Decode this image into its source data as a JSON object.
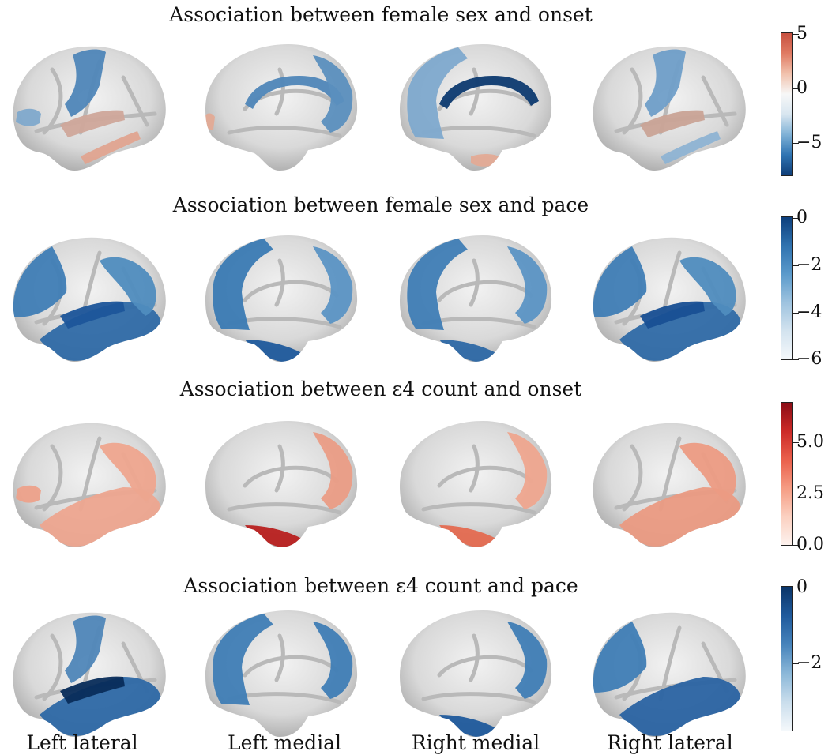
{
  "rows": [
    {
      "title": "Association between female sex and onset",
      "colorbar": {
        "gradient": [
          "#0f3e78",
          "#2f74b2",
          "#7fb1d6",
          "#d8e6f0",
          "#f7f7f7",
          "#f1c2ad",
          "#e07b63",
          "#c6503f"
        ],
        "ticks": [
          "5",
          "0",
          "−5"
        ]
      },
      "brains": [
        {
          "view": "Left lateral",
          "patches": [
            {
              "color": "#4f86b8",
              "shape": "precentral"
            },
            {
              "color": "#7fa9cc",
              "shape": "frontal-spot"
            },
            {
              "color": "#cfa79a",
              "shape": "insula"
            },
            {
              "color": "#e0a490",
              "shape": "temporal-stripe"
            }
          ]
        },
        {
          "view": "Left medial",
          "patches": [
            {
              "color": "#4f86b8",
              "shape": "cingulate"
            },
            {
              "color": "#5b8fbe",
              "shape": "precuneus"
            },
            {
              "color": "#e3aa95",
              "shape": "pole"
            }
          ]
        },
        {
          "view": "Right medial",
          "patches": [
            {
              "color": "#0d3a70",
              "shape": "cingulate"
            },
            {
              "color": "#7ea9cd",
              "shape": "frontal-medial"
            },
            {
              "color": "#e3aa95",
              "shape": "parahippo"
            }
          ]
        },
        {
          "view": "Right lateral",
          "patches": [
            {
              "color": "#6f9ec8",
              "shape": "precentral"
            },
            {
              "color": "#c9a396",
              "shape": "insula"
            },
            {
              "color": "#8eb3d3",
              "shape": "temporal-stripe"
            }
          ]
        }
      ]
    },
    {
      "title": "Association between female sex and pace",
      "colorbar": {
        "gradient": [
          "#f4f8fb",
          "#d3e3ef",
          "#9ec3df",
          "#5b9acb",
          "#2f72af",
          "#0d3f7c"
        ],
        "ticks": [
          "0",
          "−2",
          "−4",
          "−6"
        ]
      },
      "brains": [
        {
          "view": "Left lateral",
          "patches": [
            {
              "color": "#3f7db5",
              "shape": "frontal-big"
            },
            {
              "color": "#2f6aa6",
              "shape": "temporal-big"
            },
            {
              "color": "#1c559a",
              "shape": "insula"
            },
            {
              "color": "#4f8cbe",
              "shape": "parietal"
            }
          ]
        },
        {
          "view": "Left medial",
          "patches": [
            {
              "color": "#3a7ab3",
              "shape": "frontal-medial"
            },
            {
              "color": "#5b94c4",
              "shape": "precuneus"
            },
            {
              "color": "#1f5a9c",
              "shape": "basal"
            }
          ]
        },
        {
          "view": "Right medial",
          "patches": [
            {
              "color": "#3f7db5",
              "shape": "frontal-medial"
            },
            {
              "color": "#5b94c4",
              "shape": "precuneus"
            },
            {
              "color": "#2d68a5",
              "shape": "basal"
            }
          ]
        },
        {
          "view": "Right lateral",
          "patches": [
            {
              "color": "#2f6aa6",
              "shape": "temporal-big"
            },
            {
              "color": "#3f7db5",
              "shape": "frontal-big"
            },
            {
              "color": "#184f93",
              "shape": "insula"
            },
            {
              "color": "#4f8cbe",
              "shape": "parietal"
            }
          ]
        }
      ]
    },
    {
      "title": "Association between ε4 count and onset",
      "colorbar": {
        "gradient": [
          "#fdf2ee",
          "#fbd0c0",
          "#f59c83",
          "#ea5f4b",
          "#cc2a27",
          "#8b0d16"
        ],
        "ticks": [
          "5.0",
          "2.5",
          "0.0"
        ]
      },
      "brains": [
        {
          "view": "Left lateral",
          "patches": [
            {
              "color": "#eda18a",
              "shape": "frontal-spot"
            },
            {
              "color": "#eea58e",
              "shape": "parietal"
            },
            {
              "color": "#eda58f",
              "shape": "temporal-big"
            }
          ]
        },
        {
          "view": "Left medial",
          "patches": [
            {
              "color": "#ea9c85",
              "shape": "precuneus"
            },
            {
              "color": "#b8201f",
              "shape": "basal"
            }
          ]
        },
        {
          "view": "Right medial",
          "patches": [
            {
              "color": "#eea58e",
              "shape": "precuneus"
            },
            {
              "color": "#e46a50",
              "shape": "basal"
            }
          ]
        },
        {
          "view": "Right lateral",
          "patches": [
            {
              "color": "#ea9a82",
              "shape": "temporal-big"
            },
            {
              "color": "#ec9b83",
              "shape": "parietal"
            }
          ]
        }
      ]
    },
    {
      "title": "Association between ε4 count and pace",
      "colorbar": {
        "gradient": [
          "#f4f8fb",
          "#c9ddec",
          "#8ab7d8",
          "#4683bb",
          "#1f5a9c",
          "#0a3468"
        ],
        "ticks": [
          "0",
          "−2"
        ]
      },
      "brains": [
        {
          "view": "Left lateral",
          "patches": [
            {
              "color": "#2d68a5",
              "shape": "temporal-big"
            },
            {
              "color": "#082c5a",
              "shape": "insula"
            },
            {
              "color": "#4f86b8",
              "shape": "precentral"
            }
          ]
        },
        {
          "view": "Left medial",
          "patches": [
            {
              "color": "#3f7db5",
              "shape": "frontal-medial"
            },
            {
              "color": "#3f7db5",
              "shape": "precuneus"
            }
          ]
        },
        {
          "view": "Right medial",
          "patches": [
            {
              "color": "#3f7db5",
              "shape": "precuneus"
            },
            {
              "color": "#1f5a9c",
              "shape": "basal"
            }
          ]
        },
        {
          "view": "Right lateral",
          "patches": [
            {
              "color": "#2a63a2",
              "shape": "temporal-big"
            },
            {
              "color": "#3f7db5",
              "shape": "frontal-big"
            }
          ]
        }
      ]
    }
  ],
  "view_labels": [
    "Left lateral",
    "Left medial",
    "Right medial",
    "Right lateral"
  ]
}
